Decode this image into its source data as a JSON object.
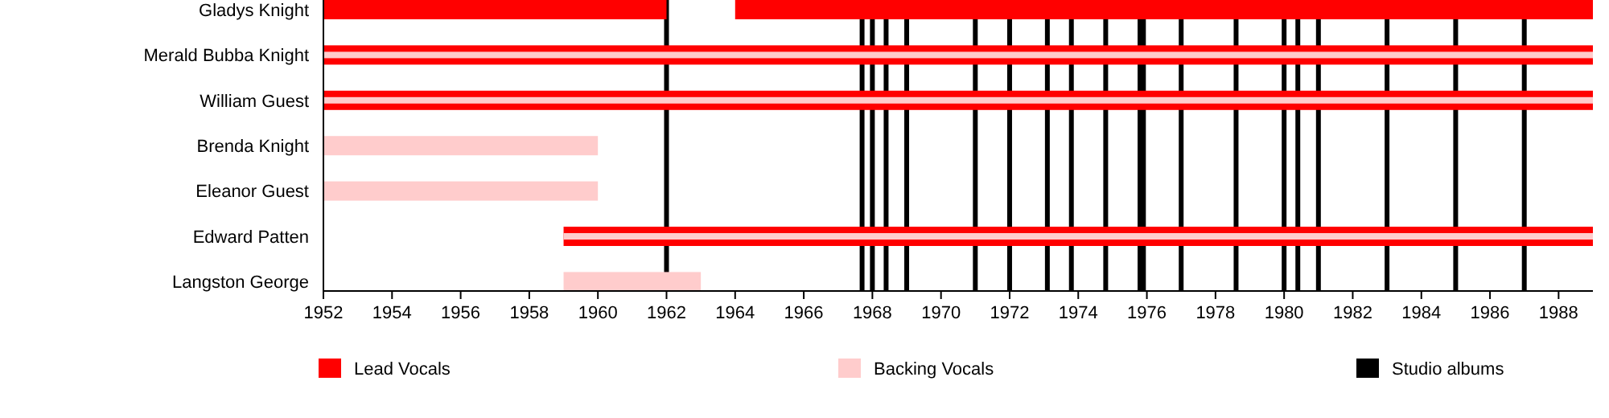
{
  "chart_data": {
    "type": "bar",
    "orientation": "horizontal",
    "categories": [
      "Gladys Knight",
      "Merald Bubba Knight",
      "William Guest",
      "Brenda Knight",
      "Eleanor Guest",
      "Edward Patten",
      "Langston George"
    ],
    "series": [
      {
        "name": "Lead Vocals",
        "color": "#ff0000",
        "base": [
          1952,
          1952,
          1952,
          null,
          null,
          1959,
          null
        ],
        "values": [
          10,
          37,
          37,
          null,
          null,
          30,
          null
        ]
      },
      {
        "color": "#ff0000",
        "base": [
          1964,
          null,
          null,
          null,
          null,
          null,
          null
        ],
        "values": [
          25,
          null,
          null,
          null,
          null,
          null,
          null
        ]
      },
      {
        "name": "Backing Vocals",
        "color": "#ffcccc",
        "base": [
          null,
          1952,
          1952,
          1952,
          1952,
          1959,
          1959
        ],
        "values": [
          null,
          37,
          37,
          8,
          8,
          30,
          4
        ]
      }
    ],
    "xlim": [
      1952,
      1989
    ],
    "xticks": [
      1952,
      1954,
      1956,
      1958,
      1960,
      1962,
      1964,
      1966,
      1968,
      1970,
      1972,
      1974,
      1976,
      1978,
      1980,
      1982,
      1984,
      1986,
      1988
    ],
    "ref_lines": [
      {
        "axis": "x",
        "value": 1962,
        "color": "#000000",
        "label": "Studio albums"
      },
      {
        "axis": "x",
        "value": 1967.7,
        "color": "#000000"
      },
      {
        "axis": "x",
        "value": 1968,
        "color": "#000000"
      },
      {
        "axis": "x",
        "value": 1968.4,
        "color": "#000000"
      },
      {
        "axis": "x",
        "value": 1969,
        "color": "#000000"
      },
      {
        "axis": "x",
        "value": 1971,
        "color": "#000000"
      },
      {
        "axis": "x",
        "value": 1972,
        "color": "#000000"
      },
      {
        "axis": "x",
        "value": 1973.1,
        "color": "#000000"
      },
      {
        "axis": "x",
        "value": 1973.8,
        "color": "#000000"
      },
      {
        "axis": "x",
        "value": 1974.8,
        "color": "#000000"
      },
      {
        "axis": "x",
        "value": 1975.8,
        "color": "#000000"
      },
      {
        "axis": "x",
        "value": 1975.9,
        "color": "#000000"
      },
      {
        "axis": "x",
        "value": 1977,
        "color": "#000000"
      },
      {
        "axis": "x",
        "value": 1978.6,
        "color": "#000000"
      },
      {
        "axis": "x",
        "value": 1980,
        "color": "#000000"
      },
      {
        "axis": "x",
        "value": 1980.4,
        "color": "#000000"
      },
      {
        "axis": "x",
        "value": 1981,
        "color": "#000000"
      },
      {
        "axis": "x",
        "value": 1983,
        "color": "#000000"
      },
      {
        "axis": "x",
        "value": 1985,
        "color": "#000000"
      },
      {
        "axis": "x",
        "value": 1987,
        "color": "#000000"
      }
    ],
    "legend": "bottom"
  }
}
